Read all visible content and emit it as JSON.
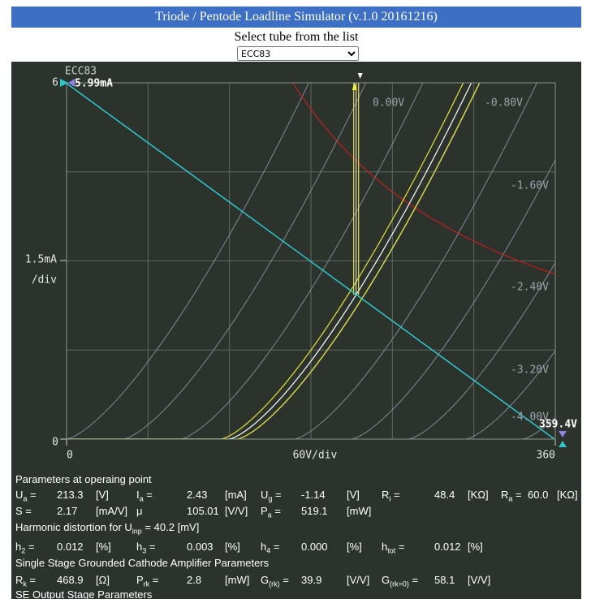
{
  "header": {
    "title": "Triode / Pentode Loadline Simulator (v.1.0 20161216)"
  },
  "selector": {
    "label": "Select tube from the list",
    "value": "ECC83"
  },
  "plot": {
    "tube": "ECC83",
    "y_max": "6",
    "ia_max": "5.99mA",
    "y_div": "1.5mA",
    "y_div_unit": "/div",
    "y_zero": "0",
    "x_zero": "0",
    "x_div": "60V/div",
    "x_max": "360",
    "ua_max": "359.4V",
    "grid_voltages": [
      "0.00V",
      "-0.80V",
      "-1.60V",
      "-2.40V",
      "-3.20V",
      "-4.00V"
    ]
  },
  "parameters": {
    "rows": [
      {
        "heading": "Parameters at operaing point"
      },
      {
        "cells": [
          {
            "label": {
              "main": "U",
              "sub": "a",
              "tail": " ="
            },
            "value": "213.3",
            "unit": "[V]"
          },
          {
            "label": {
              "main": "I",
              "sub": "a",
              "tail": " ="
            },
            "value": "2.43",
            "unit": "[mA]"
          },
          {
            "label": {
              "main": "U",
              "sub": "g",
              "tail": " ="
            },
            "value": "-1.14",
            "unit": "[V]"
          },
          {
            "label": {
              "main": "R",
              "sub": "i",
              "tail": " ="
            },
            "value": "48.4",
            "unit": "[KΩ]"
          },
          {
            "label": {
              "main": "R",
              "sub": "a",
              "tail": " ="
            },
            "value": "60.0",
            "unit": "[KΩ]"
          }
        ]
      },
      {
        "cells": [
          {
            "label": {
              "main": "S ="
            },
            "value": "2.17",
            "unit": "[mA/V]"
          },
          {
            "label": {
              "main": "μ"
            },
            "value": "105.01",
            "unit": "[V/V]"
          },
          {
            "label": {
              "main": "P",
              "sub": "a",
              "tail": " ="
            },
            "value": "519.1",
            "unit": "[mW]"
          }
        ]
      },
      {
        "note": {
          "main": "Harmonic distortion for U",
          "sub": "inp",
          "tail": " =",
          "value": "40.2",
          "unit": "[mV]"
        }
      },
      {
        "cells": [
          {
            "label": {
              "main": "h",
              "sub": "2",
              "tail": " ="
            },
            "value": "0.012",
            "unit": "[%]"
          },
          {
            "label": {
              "main": "h",
              "sub": "3",
              "tail": " ="
            },
            "value": "0.003",
            "unit": "[%]"
          },
          {
            "label": {
              "main": "h",
              "sub": "4",
              "tail": " ="
            },
            "value": "0.000",
            "unit": "[%]"
          },
          {
            "label": {
              "main": "h",
              "sub": "tot",
              "tail": " ="
            },
            "value": "0.012",
            "unit": "[%]"
          }
        ]
      },
      {
        "heading": "Single Stage Grounded Cathode Amplifier Parameters"
      },
      {
        "cells": [
          {
            "label": {
              "main": "R",
              "sub": "k",
              "tail": " ="
            },
            "value": "468.9",
            "unit": "[Ω]"
          },
          {
            "label": {
              "main": "P",
              "sub": "rk",
              "tail": " ="
            },
            "value": "2.8",
            "unit": "[mW]"
          },
          {
            "label": {
              "main": "G",
              "sub": "(rk)",
              "tail": " ="
            },
            "value": "39.9",
            "unit": "[V/V]"
          },
          {
            "label": {
              "main": "G",
              "sub": "(rk=0)",
              "tail": " ="
            },
            "value": "58.1",
            "unit": "[V/V]"
          }
        ]
      },
      {
        "heading": "SE Output Stage Parameters"
      }
    ]
  }
}
